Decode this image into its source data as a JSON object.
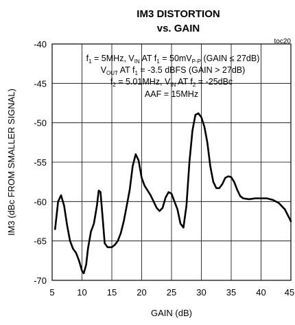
{
  "chart_data": {
    "type": "line",
    "title_line1": "IM3 DISTORTION",
    "title_line2": "vs. GAIN",
    "tag": "toc20",
    "xlabel": "GAIN (dB)",
    "ylabel": "IM3 (dBc FROM SMALLER SIGNAL)",
    "xlim": [
      5,
      45
    ],
    "ylim": [
      -70,
      -40
    ],
    "xticks": [
      "5",
      "10",
      "15",
      "20",
      "25",
      "30",
      "35",
      "40",
      "45"
    ],
    "yticks": [
      "-40",
      "-45",
      "-50",
      "-55",
      "-60",
      "-65",
      "-70"
    ],
    "grid": true,
    "annotations": {
      "line1": {
        "p1": "f",
        "p1sub": "1",
        "p2": " = 5MHz, V",
        "p2sub": "IN",
        "p3": " AT f",
        "p3sub": "1",
        "p4": " = 50mV",
        "p4sub": "P-P",
        "p5": " (GAIN ≤ 27dB)"
      },
      "line2": {
        "p1": "V",
        "p1sub": "OUT",
        "p2": " AT f",
        "p2sub": "1",
        "p3": " = -3.5 dBFS (GAIN > 27dB)"
      },
      "line3": {
        "p1": "f",
        "p1sub": "2",
        "p2": " = 5.01MHz, V",
        "p2sub": "IN",
        "p3": " AT f",
        "p3sub": "2",
        "p4": " = -25dBc"
      },
      "line4": "AAF = 15MHz"
    },
    "series": [
      {
        "color": "#000000",
        "points": [
          [
            5.5,
            -63.5
          ],
          [
            6.0,
            -60.0
          ],
          [
            6.5,
            -59.2
          ],
          [
            7.0,
            -60.5
          ],
          [
            7.5,
            -63.0
          ],
          [
            8.0,
            -65.0
          ],
          [
            8.5,
            -66.0
          ],
          [
            9.0,
            -66.5
          ],
          [
            9.5,
            -67.5
          ],
          [
            10.0,
            -68.8
          ],
          [
            10.3,
            -69.1
          ],
          [
            10.7,
            -68.0
          ],
          [
            11.0,
            -66.0
          ],
          [
            11.5,
            -63.8
          ],
          [
            12.0,
            -62.8
          ],
          [
            12.5,
            -60.5
          ],
          [
            12.8,
            -58.6
          ],
          [
            13.1,
            -58.8
          ],
          [
            13.4,
            -61.5
          ],
          [
            13.8,
            -65.3
          ],
          [
            14.3,
            -65.8
          ],
          [
            15.0,
            -65.8
          ],
          [
            15.5,
            -65.5
          ],
          [
            16.0,
            -65.0
          ],
          [
            16.5,
            -64.0
          ],
          [
            17.0,
            -62.5
          ],
          [
            17.5,
            -60.5
          ],
          [
            18.0,
            -58.5
          ],
          [
            18.5,
            -55.5
          ],
          [
            19.0,
            -54.0
          ],
          [
            19.5,
            -54.8
          ],
          [
            20.0,
            -57.0
          ],
          [
            20.5,
            -58.0
          ],
          [
            21.0,
            -58.6
          ],
          [
            21.5,
            -59.2
          ],
          [
            22.0,
            -60.0
          ],
          [
            22.5,
            -60.8
          ],
          [
            23.0,
            -61.2
          ],
          [
            23.5,
            -60.8
          ],
          [
            24.0,
            -59.5
          ],
          [
            24.5,
            -58.8
          ],
          [
            25.0,
            -59.0
          ],
          [
            25.5,
            -60.0
          ],
          [
            26.0,
            -61.0
          ],
          [
            26.5,
            -62.8
          ],
          [
            27.0,
            -63.3
          ],
          [
            27.5,
            -60.5
          ],
          [
            28.0,
            -55.0
          ],
          [
            28.5,
            -51.0
          ],
          [
            29.0,
            -49.0
          ],
          [
            29.5,
            -48.8
          ],
          [
            30.0,
            -49.3
          ],
          [
            30.5,
            -50.5
          ],
          [
            31.0,
            -52.5
          ],
          [
            31.5,
            -55.5
          ],
          [
            32.0,
            -57.5
          ],
          [
            32.5,
            -58.3
          ],
          [
            33.0,
            -58.3
          ],
          [
            33.5,
            -57.8
          ],
          [
            34.0,
            -57.0
          ],
          [
            34.5,
            -56.8
          ],
          [
            35.0,
            -56.9
          ],
          [
            35.5,
            -57.5
          ],
          [
            36.0,
            -58.5
          ],
          [
            36.5,
            -59.3
          ],
          [
            37.0,
            -59.6
          ],
          [
            38.0,
            -59.7
          ],
          [
            39.0,
            -59.6
          ],
          [
            40.0,
            -59.6
          ],
          [
            41.0,
            -59.6
          ],
          [
            42.0,
            -59.8
          ],
          [
            43.0,
            -60.2
          ],
          [
            44.0,
            -61.0
          ],
          [
            45.0,
            -62.5
          ]
        ]
      }
    ]
  }
}
